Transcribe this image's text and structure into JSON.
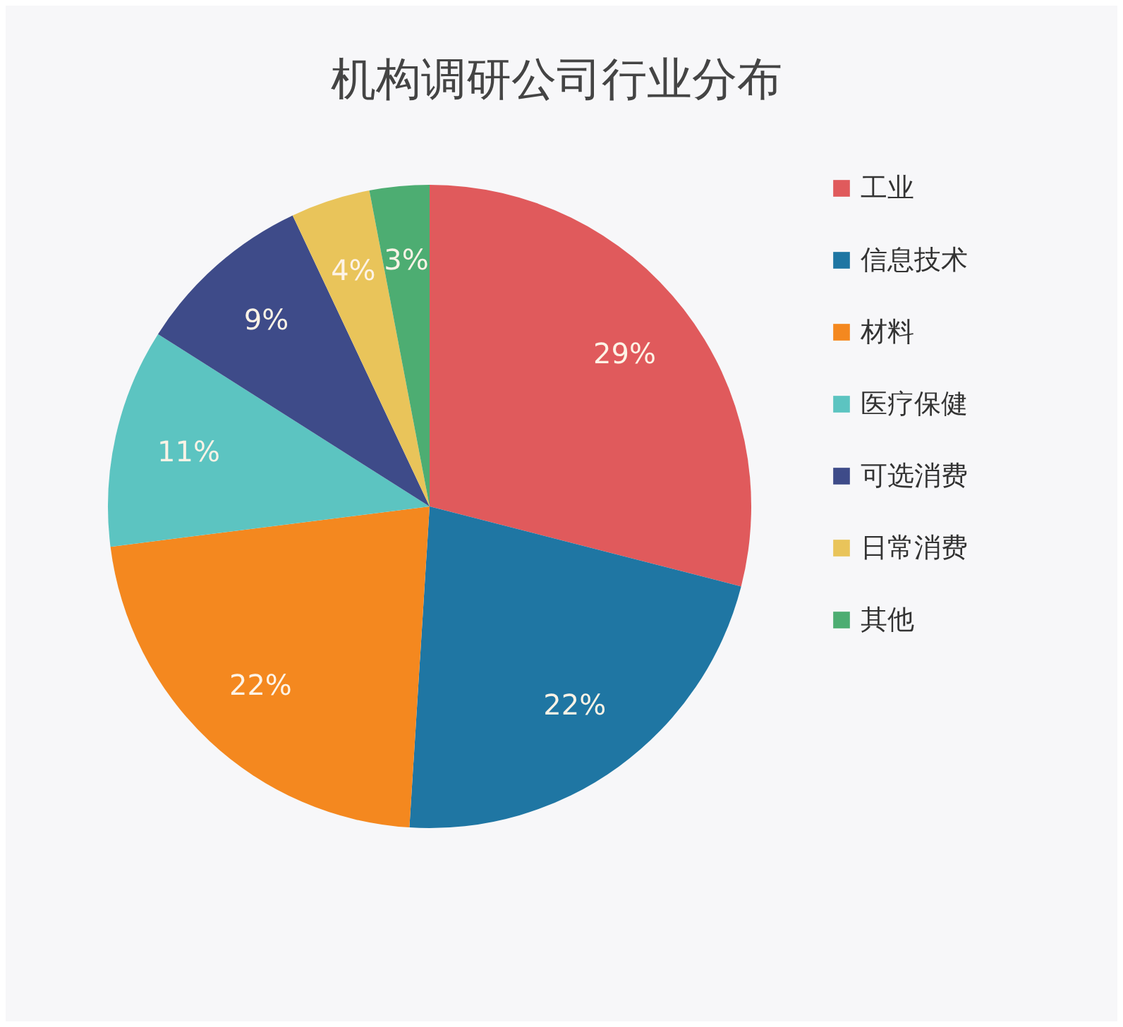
{
  "chart_data": {
    "type": "pie",
    "title": "机构调研公司行业分布",
    "categories": [
      "工业",
      "信息技术",
      "材料",
      "医疗保健",
      "可选消费",
      "日常消费",
      "其他"
    ],
    "values": [
      29,
      22,
      22,
      11,
      9,
      4,
      3
    ],
    "value_labels": [
      "29%",
      "22%",
      "22%",
      "11%",
      "9%",
      "4%",
      "3%"
    ],
    "colors": [
      "#e05a5c",
      "#1f76a3",
      "#f4881f",
      "#5cc4c1",
      "#3e4b89",
      "#e9c45a",
      "#4dad72"
    ],
    "legend": "right"
  }
}
